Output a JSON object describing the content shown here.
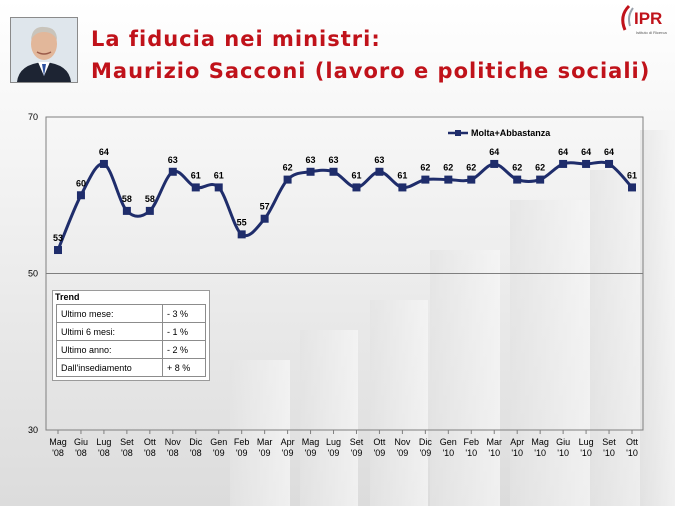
{
  "header": {
    "title_line1": "La fiducia nei ministri:",
    "title_line2": "Maurizio Sacconi (lavoro e politiche sociali)",
    "logo_text": "IPR",
    "logo_subtext": "Istituto di Ricerca"
  },
  "colors": {
    "title": "#c0121a",
    "series": "#1f2d6b",
    "grid": "#7f7f7f",
    "logo": "#c0121a"
  },
  "photo": {
    "icon": "person-portrait-icon"
  },
  "chart_data": {
    "type": "line",
    "title": "",
    "xlabel": "",
    "ylabel": "",
    "ylim": [
      30,
      70
    ],
    "yticks": [
      30,
      50,
      70
    ],
    "grid": true,
    "legend_position": "top-right",
    "categories": [
      [
        "Mag",
        "'08"
      ],
      [
        "Giu",
        "'08"
      ],
      [
        "Lug",
        "'08"
      ],
      [
        "Set",
        "'08"
      ],
      [
        "Ott",
        "'08"
      ],
      [
        "Nov",
        "'08"
      ],
      [
        "Dic",
        "'08"
      ],
      [
        "Gen",
        "'09"
      ],
      [
        "Feb",
        "'09"
      ],
      [
        "Mar",
        "'09"
      ],
      [
        "Apr",
        "'09"
      ],
      [
        "Mag",
        "'09"
      ],
      [
        "Lug",
        "'09"
      ],
      [
        "Set",
        "'09"
      ],
      [
        "Ott",
        "'09"
      ],
      [
        "Nov",
        "'09"
      ],
      [
        "Dic",
        "'09"
      ],
      [
        "Gen",
        "'10"
      ],
      [
        "Feb",
        "'10"
      ],
      [
        "Mar",
        "'10"
      ],
      [
        "Apr",
        "'10"
      ],
      [
        "Mag",
        "'10"
      ],
      [
        "Giu",
        "'10"
      ],
      [
        "Lug",
        "'10"
      ],
      [
        "Set",
        "'10"
      ],
      [
        "Ott",
        "'10"
      ]
    ],
    "series": [
      {
        "name": "Molta+Abbastanza",
        "values": [
          53,
          60,
          64,
          58,
          58,
          63,
          61,
          61,
          55,
          57,
          62,
          63,
          63,
          61,
          63,
          61,
          62,
          62,
          62,
          64,
          62,
          62,
          64,
          64,
          64,
          61
        ]
      }
    ]
  },
  "trend": {
    "title": "Trend",
    "rows": [
      {
        "label": "Ultimo mese:",
        "value": "- 3 %"
      },
      {
        "label": "Ultimi 6 mesi:",
        "value": "- 1 %"
      },
      {
        "label": "Ultimo anno:",
        "value": "- 2 %"
      },
      {
        "label": "Dall'insediamento",
        "value": "+ 8 %"
      }
    ]
  }
}
